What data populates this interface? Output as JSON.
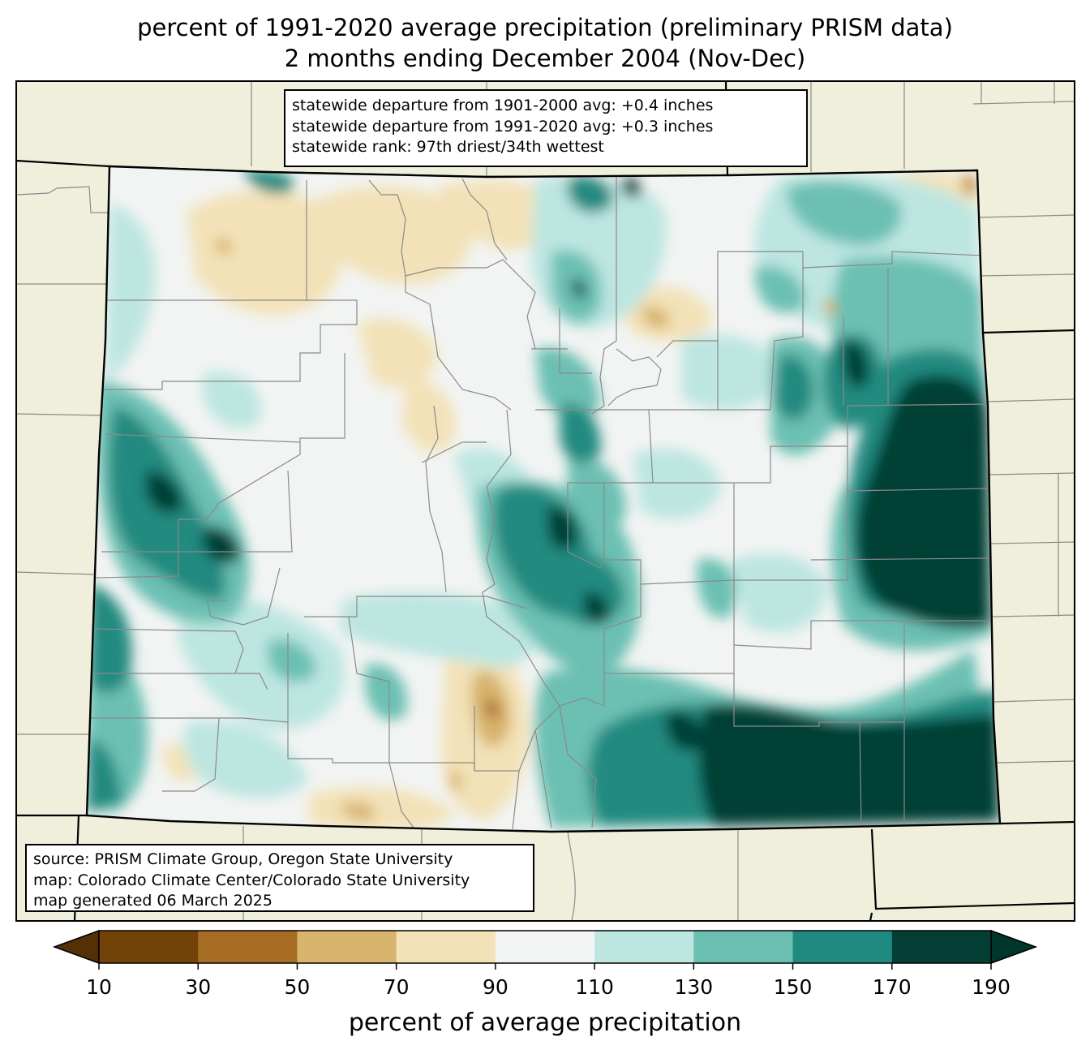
{
  "title_line1": "percent of 1991-2020 average precipitation (preliminary PRISM data)",
  "title_line2": "2 months ending December 2004 (Nov-Dec)",
  "stats": [
    "statewide departure from 1901-2000 avg: +0.4 inches",
    "statewide departure from 1991-2020 avg: +0.3 inches",
    "statewide rank: 97th driest/34th wettest"
  ],
  "credits": [
    "source: PRISM Climate Group, Oregon State University",
    "map: Colorado Climate Center/Colorado State University",
    "map generated 06 March 2025"
  ],
  "colorbar": {
    "label": "percent of average precipitation",
    "ticks": [
      "10",
      "30",
      "50",
      "70",
      "90",
      "110",
      "130",
      "150",
      "170",
      "190"
    ],
    "bins": [
      {
        "range": "10-30",
        "color": "#734209"
      },
      {
        "range": "30-50",
        "color": "#a86d25"
      },
      {
        "range": "50-70",
        "color": "#d8b46d"
      },
      {
        "range": "70-90",
        "color": "#f3e2b8"
      },
      {
        "range": "90-110",
        "color": "#f2f4f3"
      },
      {
        "range": "110-130",
        "color": "#bde6e1"
      },
      {
        "range": "130-150",
        "color": "#6cc0b2"
      },
      {
        "range": "150-170",
        "color": "#218a80"
      },
      {
        "range": "170-190",
        "color": "#033f35"
      }
    ],
    "under_color": "#543005",
    "over_color": "#01362d"
  },
  "map_colors": {
    "land_outside": "#efefdc",
    "county_lines": "#8a8a8a",
    "state_lines": "#000000"
  }
}
